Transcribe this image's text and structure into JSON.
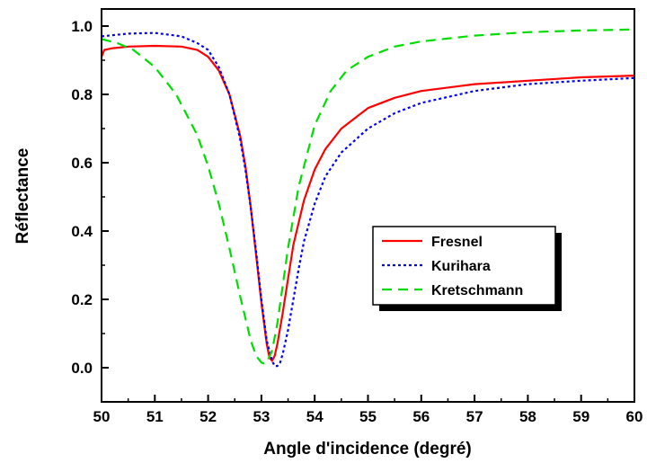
{
  "chart_data": {
    "type": "line",
    "xlabel": "Angle d'incidence (degré)",
    "ylabel": "Réflectance",
    "xlim": [
      50,
      60
    ],
    "ylim": [
      -0.1,
      1.05
    ],
    "xticks": [
      50,
      51,
      52,
      53,
      54,
      55,
      56,
      57,
      58,
      59,
      60
    ],
    "xtick_labels": [
      "50",
      "51",
      "52",
      "53",
      "54",
      "55",
      "56",
      "57",
      "58",
      "59",
      "60"
    ],
    "yticks": [
      0.0,
      0.2,
      0.4,
      0.6,
      0.8,
      1.0
    ],
    "ytick_labels": [
      "0.0",
      "0.2",
      "0.4",
      "0.6",
      "0.8",
      "1.0"
    ],
    "grid": false,
    "legend_position": "center-right",
    "series": [
      {
        "name": "Fresnel",
        "color": "#ff0000",
        "style": "solid",
        "x": [
          50.0,
          50.05,
          50.2,
          50.5,
          51.0,
          51.5,
          51.8,
          52.0,
          52.2,
          52.4,
          52.6,
          52.7,
          52.8,
          52.9,
          53.0,
          53.1,
          53.15,
          53.2,
          53.25,
          53.3,
          53.4,
          53.5,
          53.6,
          53.8,
          54.0,
          54.2,
          54.5,
          55.0,
          55.5,
          56.0,
          57.0,
          58.0,
          59.0,
          60.0
        ],
        "y": [
          0.91,
          0.93,
          0.935,
          0.94,
          0.942,
          0.94,
          0.93,
          0.91,
          0.87,
          0.8,
          0.68,
          0.59,
          0.47,
          0.33,
          0.19,
          0.07,
          0.03,
          0.02,
          0.035,
          0.07,
          0.16,
          0.26,
          0.36,
          0.49,
          0.58,
          0.64,
          0.7,
          0.76,
          0.79,
          0.81,
          0.83,
          0.84,
          0.85,
          0.855
        ]
      },
      {
        "name": "Kurihara",
        "color": "#0000ff",
        "style": "dotted",
        "x": [
          50.0,
          50.5,
          51.0,
          51.5,
          51.8,
          52.0,
          52.2,
          52.4,
          52.6,
          52.7,
          52.8,
          52.9,
          53.0,
          53.1,
          53.2,
          53.25,
          53.3,
          53.35,
          53.4,
          53.5,
          53.6,
          53.7,
          53.8,
          54.0,
          54.2,
          54.5,
          55.0,
          55.5,
          56.0,
          57.0,
          58.0,
          59.0,
          60.0
        ],
        "y": [
          0.97,
          0.978,
          0.98,
          0.97,
          0.95,
          0.93,
          0.88,
          0.8,
          0.67,
          0.58,
          0.47,
          0.34,
          0.2,
          0.08,
          0.02,
          0.005,
          0.005,
          0.015,
          0.04,
          0.11,
          0.2,
          0.29,
          0.37,
          0.48,
          0.56,
          0.63,
          0.7,
          0.745,
          0.775,
          0.81,
          0.83,
          0.84,
          0.848
        ]
      },
      {
        "name": "Kretschmann",
        "color": "#00dd00",
        "style": "dashed",
        "x": [
          50.0,
          50.3,
          50.6,
          51.0,
          51.4,
          51.8,
          52.0,
          52.2,
          52.4,
          52.6,
          52.8,
          52.9,
          53.0,
          53.05,
          53.1,
          53.2,
          53.3,
          53.4,
          53.5,
          53.7,
          54.0,
          54.3,
          54.6,
          55.0,
          55.5,
          56.0,
          57.0,
          58.0,
          59.0,
          60.0
        ],
        "y": [
          0.962,
          0.95,
          0.93,
          0.88,
          0.8,
          0.68,
          0.59,
          0.48,
          0.35,
          0.21,
          0.08,
          0.035,
          0.015,
          0.012,
          0.015,
          0.05,
          0.13,
          0.24,
          0.35,
          0.53,
          0.71,
          0.81,
          0.87,
          0.91,
          0.94,
          0.955,
          0.972,
          0.982,
          0.987,
          0.99
        ]
      }
    ]
  }
}
